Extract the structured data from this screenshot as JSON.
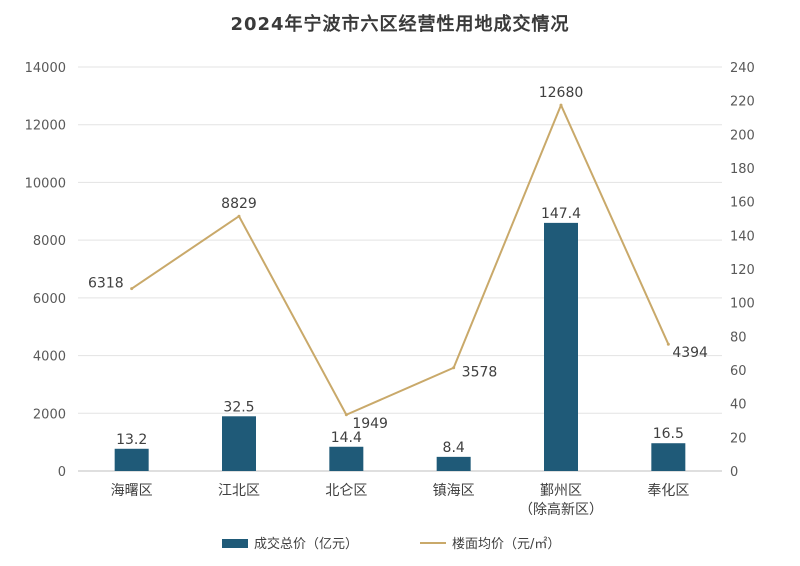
{
  "chart_data": {
    "type": "bar+line",
    "title": "2024年宁波市六区经营性用地成交情况",
    "categories": [
      [
        "海曙区"
      ],
      [
        "江北区"
      ],
      [
        "北仑区"
      ],
      [
        "镇海区"
      ],
      [
        "鄞州区",
        "（除高新区）"
      ],
      [
        "奉化区"
      ]
    ],
    "series": [
      {
        "name": "成交总价（亿元）",
        "type": "bar",
        "axis": "right",
        "color": "#1f5a78",
        "values": [
          13.2,
          32.5,
          14.4,
          8.4,
          147.4,
          16.5
        ],
        "labels": [
          "13.2",
          "32.5",
          "14.4",
          "8.4",
          "147.4",
          "16.5"
        ]
      },
      {
        "name": "楼面均价（元/㎡）",
        "type": "line",
        "axis": "left",
        "color": "#c9a96a",
        "values": [
          6318,
          8829,
          1949,
          3578,
          12680,
          4394
        ],
        "labels": [
          "6318",
          "8829",
          "1949",
          "3578",
          "12680",
          "4394"
        ]
      }
    ],
    "y_left": {
      "min": 0,
      "max": 14000,
      "ticks": [
        "0",
        "2000",
        "4000",
        "6000",
        "8000",
        "10000",
        "12000",
        "14000"
      ]
    },
    "y_right": {
      "min": 0,
      "max": 240,
      "ticks": [
        "0",
        "20",
        "40",
        "60",
        "80",
        "100",
        "120",
        "140",
        "160",
        "180",
        "200",
        "220",
        "240"
      ]
    },
    "grid": true,
    "legend_position": "bottom"
  }
}
